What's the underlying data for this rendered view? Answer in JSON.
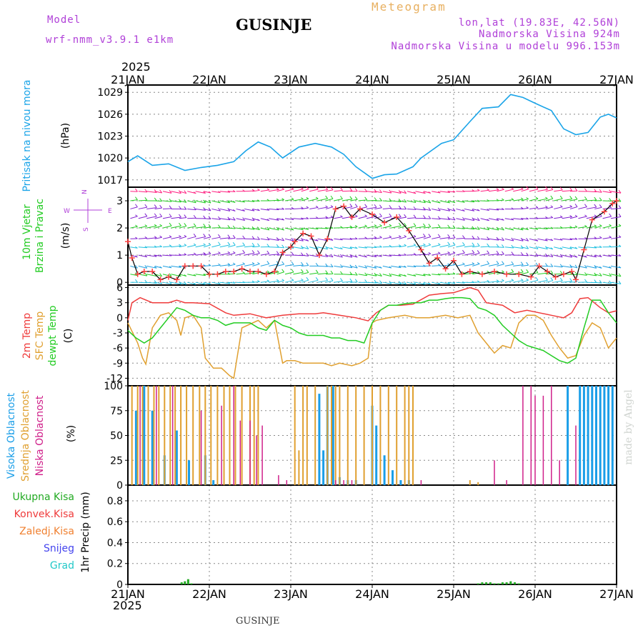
{
  "header": {
    "model_label": "Model",
    "model_name": "wrf-nmm_v3.9.1  e1km",
    "station": "GUSINJE",
    "title": "Meteogram",
    "coords": "lon,lat (19.83E, 42.56N)",
    "elevation": "Nadmorska Visina 924m",
    "model_elevation": "Nadmorska Visina u modelu 996.153m",
    "year_top": "2025",
    "year_bottom": "2025",
    "footer_station": "GUSINJE",
    "credit": "made by Angel"
  },
  "colors": {
    "pressure": "#1aa4e8",
    "temp_2m": "#ef3b3b",
    "temp_sfc": "#e0a030",
    "dewpoint": "#22cc22",
    "cloud_high": "#1a9ee8",
    "cloud_mid": "#e0a030",
    "cloud_low": "#d0208a",
    "total_precip": "#22aa22",
    "convective_precip": "#ef3b3b",
    "frozen_precip": "#f08030",
    "snow": "#4444ee",
    "hail": "#22c8c8",
    "wind_line": "#000000",
    "wind_marker": "#ff4040"
  },
  "x_axis": {
    "ticks": [
      "21JAN",
      "22JAN",
      "23JAN",
      "24JAN",
      "25JAN",
      "26JAN",
      "27JAN"
    ],
    "range_days": [
      0,
      6
    ]
  },
  "panels": {
    "pressure": {
      "label": "Pritisak na nivou mora",
      "unit": "(hPa)"
    },
    "wind": {
      "label_line1": "10m Vjetar",
      "label_line2": "Brzina i Pravac",
      "unit": "(m/s)",
      "compass": [
        "W",
        "N",
        "E",
        "S"
      ]
    },
    "temp": {
      "label_a": "2m Temp",
      "label_b": "SFC Temp",
      "label_c": "dewpt Temp",
      "unit": "(C)"
    },
    "cloud": {
      "label_a": "Visoka Oblacnost",
      "label_b": "Srednja Oblacnost",
      "label_c": "Niska Oblacnost",
      "unit": "(%)"
    },
    "precip": {
      "legend": [
        "Ukupna Kisa",
        "Konvek.Kisa",
        "Zaledj.Kisa",
        "Snijeg",
        "Grad"
      ],
      "ylabel": "1hr Precip (mm)"
    }
  },
  "chart_data": [
    {
      "type": "line",
      "title": "",
      "ylabel": "Pritisak na nivou mora (hPa)",
      "x_unit": "days since 21JAN 00z",
      "ylim": [
        1016,
        1030
      ],
      "yticks": [
        1017,
        1020,
        1023,
        1026,
        1029
      ],
      "series": [
        {
          "name": "Pritisak na nivou mora",
          "x": [
            0,
            0.12,
            0.3,
            0.5,
            0.7,
            0.9,
            1.1,
            1.3,
            1.45,
            1.6,
            1.75,
            1.9,
            2.1,
            2.3,
            2.5,
            2.65,
            2.8,
            3.0,
            3.15,
            3.3,
            3.5,
            3.6,
            3.85,
            4.0,
            4.2,
            4.35,
            4.55,
            4.7,
            4.85,
            5.0,
            5.2,
            5.35,
            5.5,
            5.65,
            5.8,
            5.9,
            6.0
          ],
          "y": [
            1019.5,
            1020.3,
            1019.0,
            1019.2,
            1018.3,
            1018.7,
            1019.0,
            1019.5,
            1021.0,
            1022.2,
            1021.5,
            1020.0,
            1021.5,
            1022.0,
            1021.5,
            1020.5,
            1018.8,
            1017.2,
            1017.7,
            1017.8,
            1018.8,
            1020.0,
            1022.0,
            1022.5,
            1025.0,
            1026.8,
            1027.0,
            1028.7,
            1028.3,
            1027.5,
            1026.5,
            1024.0,
            1023.2,
            1023.5,
            1025.6,
            1026.0,
            1025.5
          ]
        }
      ]
    },
    {
      "type": "line",
      "title": "",
      "ylabel": "10m Vjetar Brzina i Pravac (m/s)",
      "x_unit": "days since 21JAN 00z",
      "ylim": [
        -0.1,
        3.5
      ],
      "yticks": [
        0,
        1,
        2,
        3
      ],
      "series": [
        {
          "name": "wind speed",
          "x": [
            0,
            0.05,
            0.12,
            0.2,
            0.3,
            0.4,
            0.5,
            0.6,
            0.7,
            0.8,
            0.9,
            1.0,
            1.1,
            1.2,
            1.3,
            1.4,
            1.5,
            1.6,
            1.7,
            1.8,
            1.9,
            2.0,
            2.05,
            2.15,
            2.25,
            2.35,
            2.45,
            2.55,
            2.65,
            2.75,
            2.85,
            3.0,
            3.15,
            3.3,
            3.45,
            3.6,
            3.7,
            3.8,
            3.9,
            4.0,
            4.1,
            4.2,
            4.35,
            4.5,
            4.65,
            4.8,
            4.95,
            5.05,
            5.15,
            5.25,
            5.35,
            5.45,
            5.5,
            5.6,
            5.7,
            5.85,
            5.95,
            6.0
          ],
          "y": [
            1.5,
            0.9,
            0.3,
            0.4,
            0.4,
            0.1,
            0.2,
            0.1,
            0.6,
            0.6,
            0.6,
            0.3,
            0.3,
            0.4,
            0.4,
            0.5,
            0.4,
            0.4,
            0.3,
            0.4,
            1.1,
            1.3,
            1.5,
            1.8,
            1.7,
            1.0,
            1.6,
            2.7,
            2.8,
            2.4,
            2.7,
            2.5,
            2.2,
            2.4,
            1.9,
            1.2,
            0.7,
            0.9,
            0.5,
            0.8,
            0.3,
            0.4,
            0.3,
            0.4,
            0.3,
            0.3,
            0.2,
            0.6,
            0.4,
            0.2,
            0.3,
            0.4,
            0.1,
            1.2,
            2.3,
            2.6,
            2.9,
            3.0
          ]
        }
      ],
      "wind_barb_rows": [
        0.0,
        0.3,
        0.6,
        1.0,
        1.3,
        1.6,
        2.0,
        2.35,
        2.7,
        3.0,
        3.35
      ]
    },
    {
      "type": "line",
      "title": "",
      "ylabel": "Temp (C)",
      "x_unit": "days since 21JAN 00z",
      "ylim": [
        -13.5,
        6.5
      ],
      "yticks": [
        -12,
        -9,
        -6,
        -3,
        0,
        3,
        6
      ],
      "series": [
        {
          "name": "2m Temp",
          "x": [
            0,
            0.05,
            0.15,
            0.3,
            0.5,
            0.6,
            0.7,
            0.8,
            1.0,
            1.2,
            1.3,
            1.5,
            1.7,
            1.9,
            2.1,
            2.3,
            2.4,
            2.6,
            2.8,
            2.95,
            3.05,
            3.2,
            3.35,
            3.5,
            3.7,
            3.85,
            4.0,
            4.2,
            4.3,
            4.4,
            4.6,
            4.75,
            4.9,
            5.05,
            5.2,
            5.35,
            5.45,
            5.55,
            5.65,
            5.8,
            5.9,
            6.0
          ],
          "y": [
            -0.5,
            3.0,
            4.0,
            3.0,
            3.0,
            3.5,
            3.0,
            3.0,
            2.8,
            1.0,
            0.5,
            0.8,
            0.0,
            0.5,
            0.8,
            0.8,
            1.0,
            0.5,
            0.0,
            -0.6,
            1.0,
            2.5,
            2.5,
            2.7,
            4.5,
            4.8,
            5.0,
            6.0,
            5.5,
            3.0,
            2.5,
            1.0,
            1.5,
            1.0,
            0.5,
            0.0,
            1.0,
            3.8,
            4.0,
            2.0,
            1.0,
            1.4
          ]
        },
        {
          "name": "SFC Temp",
          "x": [
            0,
            0.12,
            0.18,
            0.22,
            0.3,
            0.4,
            0.5,
            0.6,
            0.65,
            0.7,
            0.8,
            0.9,
            0.95,
            1.05,
            1.15,
            1.25,
            1.3,
            1.4,
            1.6,
            1.7,
            1.8,
            1.9,
            1.95,
            2.05,
            2.15,
            2.25,
            2.4,
            2.5,
            2.6,
            2.75,
            2.85,
            2.95,
            3.0,
            3.05,
            3.2,
            3.4,
            3.55,
            3.7,
            3.9,
            4.05,
            4.2,
            4.3,
            4.4,
            4.5,
            4.6,
            4.7,
            4.8,
            4.9,
            5.0,
            5.1,
            5.2,
            5.3,
            5.4,
            5.5,
            5.6,
            5.7,
            5.8,
            5.9,
            6.0
          ],
          "y": [
            -1.0,
            -5.0,
            -8.0,
            -9.2,
            -2.0,
            0.5,
            1.0,
            -0.5,
            -3.5,
            0.0,
            0.5,
            -2.0,
            -8.0,
            -10.0,
            -10.0,
            -11.5,
            -12.0,
            -2.0,
            -0.5,
            -2.0,
            -0.5,
            -9.0,
            -8.5,
            -8.5,
            -9.0,
            -9.0,
            -9.0,
            -9.5,
            -9.0,
            -9.5,
            -9.0,
            -8.0,
            -1.0,
            -0.5,
            0.0,
            0.5,
            0.0,
            0.0,
            0.5,
            0.0,
            0.5,
            -3.0,
            -5.0,
            -7.0,
            -5.5,
            -6.0,
            -1.0,
            0.5,
            0.5,
            -0.5,
            -3.5,
            -6.0,
            -8.0,
            -7.5,
            -3.5,
            -1.0,
            -2.0,
            -6.0,
            -4.0
          ]
        },
        {
          "name": "dewpt Temp",
          "x": [
            0,
            0.1,
            0.2,
            0.3,
            0.4,
            0.5,
            0.6,
            0.7,
            0.8,
            0.9,
            1.0,
            1.1,
            1.2,
            1.3,
            1.4,
            1.5,
            1.6,
            1.7,
            1.8,
            1.9,
            2.0,
            2.1,
            2.2,
            2.3,
            2.4,
            2.5,
            2.6,
            2.7,
            2.8,
            2.9,
            3.0,
            3.1,
            3.2,
            3.3,
            3.4,
            3.5,
            3.6,
            3.7,
            3.8,
            3.9,
            4.0,
            4.1,
            4.2,
            4.3,
            4.4,
            4.5,
            4.6,
            4.7,
            4.8,
            4.9,
            5.0,
            5.1,
            5.2,
            5.3,
            5.4,
            5.5,
            5.6,
            5.7,
            5.8,
            5.9,
            6.0
          ],
          "y": [
            -2.5,
            -4.0,
            -5.0,
            -4.0,
            -2.0,
            0.0,
            2.0,
            1.5,
            0.5,
            0.0,
            0.0,
            -0.5,
            -1.5,
            -1.0,
            -1.0,
            -1.0,
            -2.0,
            -2.5,
            -0.5,
            -1.5,
            -2.0,
            -3.0,
            -3.5,
            -3.5,
            -3.5,
            -4.0,
            -4.0,
            -4.5,
            -4.5,
            -5.0,
            -1.0,
            1.5,
            2.5,
            2.5,
            2.8,
            3.0,
            3.0,
            3.5,
            3.5,
            3.8,
            4.0,
            4.0,
            3.8,
            2.0,
            1.5,
            0.5,
            -1.5,
            -3.0,
            -4.5,
            -5.5,
            -6.0,
            -6.5,
            -7.5,
            -8.5,
            -9.0,
            -8.0,
            -2.0,
            3.5,
            3.5,
            1.0,
            -1.0
          ]
        }
      ]
    },
    {
      "type": "bar",
      "title": "",
      "ylabel": "Oblacnost (%)",
      "x_unit": "days since 21JAN 00z",
      "ylim": [
        0,
        100
      ],
      "yticks": [
        0,
        25,
        50,
        75,
        100
      ],
      "series": [
        {
          "name": "Visoka Oblacnost",
          "x": [
            0.1,
            0.2,
            0.3,
            0.45,
            0.6,
            0.75,
            0.95,
            1.05,
            2.35,
            2.4,
            2.45,
            2.52,
            2.6,
            2.7,
            2.8,
            3.0,
            3.05,
            3.15,
            3.25,
            3.35,
            3.45,
            5.4,
            5.55,
            5.6,
            5.65,
            5.7,
            5.75,
            5.8,
            5.85,
            5.9,
            5.95
          ],
          "y": [
            75,
            100,
            75,
            30,
            55,
            25,
            30,
            5,
            92,
            35,
            100,
            100,
            8,
            5,
            5,
            80,
            60,
            30,
            15,
            5,
            5,
            100,
            100,
            100,
            100,
            100,
            100,
            100,
            100,
            100,
            100
          ]
        },
        {
          "name": "Srednja Oblacnost",
          "x": [
            0.05,
            0.12,
            0.18,
            0.25,
            0.32,
            0.38,
            0.45,
            0.52,
            0.58,
            0.65,
            0.72,
            0.8,
            0.88,
            0.95,
            1.02,
            1.1,
            1.18,
            1.25,
            1.32,
            1.4,
            1.5,
            1.55,
            1.6,
            2.05,
            2.1,
            2.15,
            2.2,
            2.3,
            2.45,
            2.5,
            2.55,
            2.6,
            2.7,
            2.8,
            2.9,
            3.0,
            3.1,
            3.2,
            3.3,
            3.4,
            3.45,
            3.5,
            4.2,
            4.3
          ],
          "y": [
            100,
            100,
            100,
            100,
            100,
            100,
            100,
            100,
            100,
            100,
            100,
            100,
            100,
            100,
            100,
            100,
            100,
            100,
            100,
            100,
            100,
            100,
            100,
            100,
            35,
            100,
            100,
            100,
            100,
            100,
            100,
            100,
            100,
            100,
            100,
            100,
            100,
            100,
            100,
            100,
            100,
            100,
            5,
            3
          ]
        },
        {
          "name": "Niska Oblacnost",
          "x": [
            0.15,
            0.35,
            0.55,
            0.9,
            1.15,
            1.3,
            1.38,
            1.5,
            1.58,
            1.65,
            1.85,
            1.95,
            2.55,
            2.65,
            2.75,
            3.6,
            4.5,
            4.65,
            4.85,
            4.95,
            5.0,
            5.1,
            5.2,
            5.3,
            5.5
          ],
          "y": [
            100,
            100,
            100,
            75,
            80,
            100,
            65,
            65,
            50,
            60,
            10,
            5,
            5,
            5,
            5,
            5,
            25,
            5,
            100,
            100,
            90,
            90,
            100,
            25,
            60
          ]
        }
      ]
    },
    {
      "type": "bar",
      "title": "",
      "ylabel": "1hr Precip (mm)",
      "x_unit": "days since 21JAN 00z",
      "ylim": [
        0,
        0.95
      ],
      "yticks": [
        0,
        0.2,
        0.4,
        0.6,
        0.8
      ],
      "series": [
        {
          "name": "Ukupna Kisa",
          "x": [
            0.66,
            0.7,
            0.74,
            0.78,
            4.3,
            4.35,
            4.4,
            4.45,
            4.5,
            4.55,
            4.6,
            4.65,
            4.7,
            4.75,
            4.8
          ],
          "y": [
            0.02,
            0.03,
            0.05,
            0.01,
            0.01,
            0.02,
            0.02,
            0.02,
            0.01,
            0.01,
            0.02,
            0.02,
            0.03,
            0.02,
            0.01
          ]
        }
      ]
    }
  ]
}
